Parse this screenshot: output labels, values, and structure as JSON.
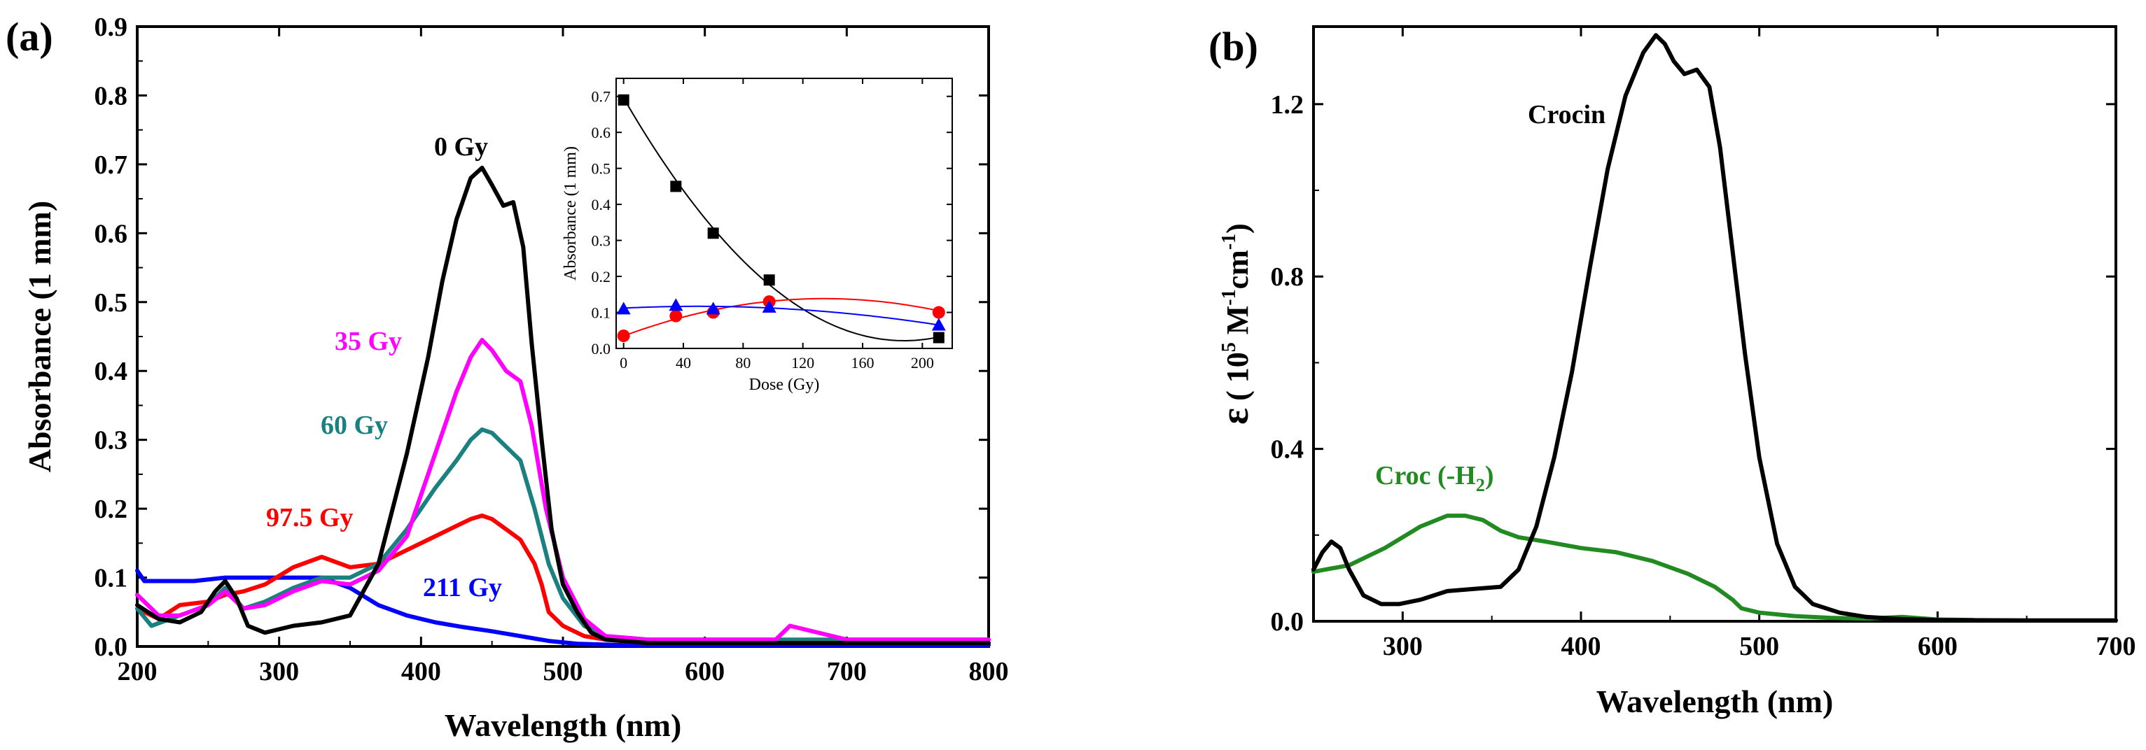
{
  "chart_data": [
    {
      "panel_label": "(a)",
      "type": "line",
      "xlabel": "Wavelength (nm)",
      "ylabel": "Absorbance (1 mm)",
      "xlim": [
        200,
        800
      ],
      "ylim": [
        0,
        0.9
      ],
      "xticks": [
        "200",
        "300",
        "400",
        "500",
        "600",
        "700",
        "800"
      ],
      "yticks": [
        "0.0",
        "0.1",
        "0.2",
        "0.3",
        "0.4",
        "0.5",
        "0.6",
        "0.7",
        "0.8",
        "0.9"
      ],
      "series": [
        {
          "name": "0 Gy",
          "label": "0 Gy",
          "color": "#000000",
          "x": [
            200,
            215,
            230,
            245,
            255,
            262,
            270,
            278,
            290,
            310,
            330,
            350,
            370,
            390,
            405,
            415,
            425,
            435,
            443,
            450,
            458,
            465,
            472,
            478,
            485,
            492,
            500,
            510,
            520,
            530,
            560,
            600,
            700,
            800
          ],
          "y": [
            0.06,
            0.04,
            0.035,
            0.05,
            0.08,
            0.095,
            0.07,
            0.03,
            0.02,
            0.03,
            0.035,
            0.045,
            0.12,
            0.28,
            0.42,
            0.53,
            0.62,
            0.68,
            0.695,
            0.67,
            0.64,
            0.645,
            0.58,
            0.44,
            0.3,
            0.17,
            0.09,
            0.05,
            0.02,
            0.01,
            0.005,
            0.005,
            0.005,
            0.005
          ]
        },
        {
          "name": "35 Gy",
          "label": "35 Gy",
          "color": "#ff00ff",
          "x": [
            200,
            215,
            230,
            250,
            262,
            275,
            290,
            310,
            330,
            350,
            370,
            390,
            410,
            425,
            435,
            443,
            450,
            460,
            470,
            478,
            488,
            500,
            515,
            530,
            560,
            650,
            660,
            700,
            800
          ],
          "y": [
            0.075,
            0.045,
            0.045,
            0.06,
            0.08,
            0.055,
            0.06,
            0.08,
            0.095,
            0.09,
            0.11,
            0.16,
            0.28,
            0.37,
            0.42,
            0.445,
            0.43,
            0.4,
            0.385,
            0.32,
            0.2,
            0.1,
            0.04,
            0.015,
            0.01,
            0.01,
            0.03,
            0.01,
            0.01
          ]
        },
        {
          "name": "60 Gy",
          "label": "60 Gy",
          "color": "#1b8080",
          "x": [
            200,
            210,
            230,
            250,
            262,
            275,
            290,
            310,
            330,
            350,
            370,
            390,
            410,
            425,
            435,
            443,
            450,
            460,
            470,
            480,
            490,
            500,
            515,
            530,
            560,
            800
          ],
          "y": [
            0.055,
            0.03,
            0.045,
            0.06,
            0.085,
            0.055,
            0.065,
            0.085,
            0.1,
            0.1,
            0.12,
            0.17,
            0.23,
            0.27,
            0.3,
            0.315,
            0.31,
            0.29,
            0.27,
            0.2,
            0.12,
            0.07,
            0.03,
            0.015,
            0.01,
            0.01
          ]
        },
        {
          "name": "97.5 Gy",
          "label": "97.5 Gy",
          "color": "#ff0000",
          "x": [
            200,
            215,
            230,
            250,
            262,
            275,
            290,
            310,
            330,
            350,
            370,
            390,
            410,
            425,
            435,
            443,
            450,
            460,
            470,
            480,
            485,
            490,
            500,
            515,
            530,
            560,
            800
          ],
          "y": [
            0.055,
            0.04,
            0.06,
            0.065,
            0.075,
            0.08,
            0.09,
            0.115,
            0.13,
            0.115,
            0.12,
            0.14,
            0.16,
            0.175,
            0.185,
            0.19,
            0.185,
            0.17,
            0.155,
            0.12,
            0.09,
            0.05,
            0.03,
            0.015,
            0.01,
            0.005,
            0.005
          ]
        },
        {
          "name": "211 Gy",
          "label": "211 Gy",
          "color": "#0000ff",
          "x": [
            200,
            205,
            215,
            240,
            262,
            280,
            300,
            330,
            350,
            370,
            390,
            410,
            430,
            450,
            470,
            490,
            510,
            540,
            800
          ],
          "y": [
            0.11,
            0.095,
            0.095,
            0.095,
            0.1,
            0.1,
            0.1,
            0.1,
            0.085,
            0.06,
            0.045,
            0.035,
            0.028,
            0.022,
            0.015,
            0.008,
            0.004,
            0.002,
            0.002
          ]
        }
      ],
      "inset": {
        "xlabel": "Dose (Gy)",
        "ylabel": "Absorbance (1 mm)",
        "xlim": [
          -5,
          220
        ],
        "ylim": [
          0,
          0.75
        ],
        "xticks": [
          "0",
          "40",
          "80",
          "120",
          "160",
          "200"
        ],
        "yticks": [
          "0.0",
          "0.1",
          "0.2",
          "0.3",
          "0.4",
          "0.5",
          "0.6",
          "0.7"
        ],
        "series": [
          {
            "name": "black squares",
            "marker": "square",
            "color": "#000000",
            "x": [
              0,
              35,
              60,
              97.5,
              211
            ],
            "y": [
              0.69,
              0.45,
              0.32,
              0.19,
              0.03
            ]
          },
          {
            "name": "red circles",
            "marker": "circle",
            "color": "#ff0000",
            "x": [
              0,
              35,
              60,
              97.5,
              211
            ],
            "y": [
              0.035,
              0.09,
              0.1,
              0.13,
              0.1
            ]
          },
          {
            "name": "blue triangles",
            "marker": "triangle",
            "color": "#0000ff",
            "x": [
              0,
              35,
              60,
              97.5,
              211
            ],
            "y": [
              0.11,
              0.12,
              0.11,
              0.115,
              0.065
            ]
          }
        ],
        "fits": [
          {
            "color": "#000000",
            "coeffs": [
              0.6953,
              -0.007179,
              1.912e-05
            ]
          },
          {
            "color": "#ff0000",
            "coeffs": [
              0.0345,
              0.001546,
              -5.757e-06
            ]
          },
          {
            "color": "#0000ff",
            "coeffs": [
              0.1119,
              0.0002,
              -2e-06
            ]
          }
        ]
      }
    },
    {
      "panel_label": "(b)",
      "type": "line",
      "xlabel": "Wavelength (nm)",
      "ylabel_main": "ε",
      "ylabel_rest": "( 10",
      "ylabel_sup1": "5",
      "ylabel_mid": " M",
      "ylabel_sup2": "-1",
      "ylabel_mid2": "cm",
      "ylabel_sup3": "-1",
      "ylabel_end": ")",
      "xlim": [
        250,
        700
      ],
      "ylim": [
        0,
        1.38
      ],
      "xticks": [
        "300",
        "400",
        "500",
        "600",
        "700"
      ],
      "yticks": [
        "0.0",
        "0.4",
        "0.8",
        "1.2"
      ],
      "series": [
        {
          "name": "Crocin",
          "label": "Crocin",
          "color": "#000000",
          "x": [
            250,
            255,
            260,
            265,
            270,
            278,
            288,
            298,
            310,
            325,
            340,
            355,
            365,
            375,
            385,
            395,
            405,
            415,
            425,
            435,
            442,
            447,
            452,
            458,
            465,
            472,
            478,
            485,
            492,
            500,
            510,
            520,
            530,
            545,
            560,
            580,
            600,
            650,
            700
          ],
          "y": [
            0.12,
            0.16,
            0.185,
            0.17,
            0.12,
            0.06,
            0.04,
            0.04,
            0.05,
            0.07,
            0.075,
            0.08,
            0.12,
            0.22,
            0.38,
            0.58,
            0.82,
            1.05,
            1.22,
            1.32,
            1.36,
            1.34,
            1.3,
            1.27,
            1.28,
            1.24,
            1.1,
            0.86,
            0.62,
            0.38,
            0.18,
            0.08,
            0.04,
            0.02,
            0.01,
            0.005,
            0.003,
            0.002,
            0.002
          ]
        },
        {
          "name": "Croc (-H2)",
          "label_main": "Croc (-H",
          "label_sub": "2",
          "label_end": ")",
          "color": "#218a21",
          "x": [
            250,
            270,
            290,
            310,
            325,
            335,
            345,
            355,
            365,
            380,
            400,
            420,
            440,
            460,
            475,
            485,
            490,
            500,
            520,
            540,
            560,
            580,
            600,
            620
          ],
          "y": [
            0.115,
            0.13,
            0.17,
            0.22,
            0.245,
            0.245,
            0.235,
            0.21,
            0.195,
            0.185,
            0.17,
            0.16,
            0.14,
            0.11,
            0.08,
            0.05,
            0.03,
            0.02,
            0.012,
            0.008,
            0.006,
            0.01,
            0.004,
            0.003
          ]
        }
      ]
    }
  ]
}
